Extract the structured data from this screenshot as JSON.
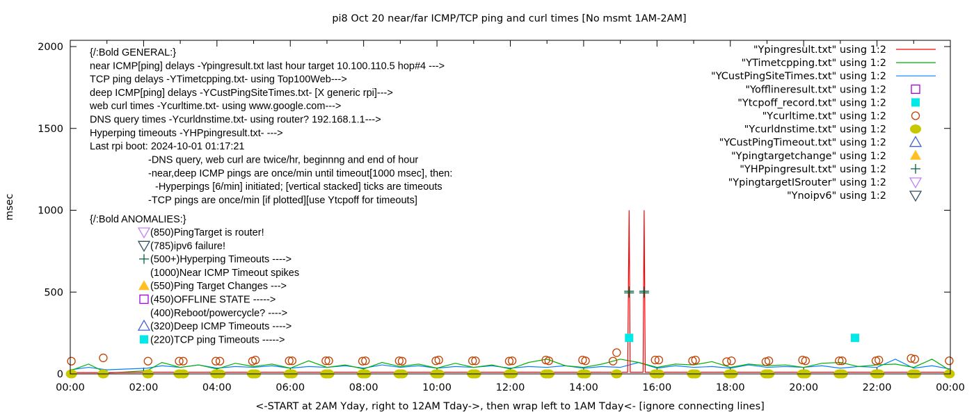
{
  "chart_data": {
    "type": "line",
    "title": "pi8 Oct 20  near/far ICMP/TCP ping and curl times [No msmt 1AM-2AM]",
    "xlabel": "<-START at 2AM Yday, right to 12AM Tday->, then wrap left to 1AM Tday<- [ignore connecting lines]",
    "ylabel": "msec",
    "xlim": [
      "00:00",
      "24:00"
    ],
    "ylim": [
      0,
      2050
    ],
    "x_ticks": [
      "00:00",
      "02:00",
      "04:00",
      "06:00",
      "08:00",
      "10:00",
      "12:00",
      "14:00",
      "16:00",
      "18:00",
      "20:00",
      "22:00",
      "00:00"
    ],
    "y_ticks": [
      "0",
      "500",
      "1000",
      "1500",
      "2000"
    ],
    "grid": false,
    "legend_placement": "top-right",
    "colors": {
      "ypingresult": "#ff0000",
      "ytimetcpping": "#00b000",
      "ycustpingsitetimes": "#0080ff",
      "yofflineresult": "#a000e0",
      "ytcpoff": "#00e8e8",
      "ycurltime": "#c04000",
      "ycurldnstime": "#c8c800",
      "ycustpingtimeout": "#4060d0",
      "ypingtargetchange": "#ffc020",
      "yhpping": "#006040",
      "ypingtargetisrouter": "#c080ff",
      "ynoipv6": "#305060"
    },
    "legend": [
      {
        "label": "\"Ypingresult.txt\" using 1:2",
        "style": "line",
        "color": "#ff0000"
      },
      {
        "label": "\"YTimetcpping.txt\" using 1:2",
        "style": "line",
        "color": "#00b000"
      },
      {
        "label": "\"YCustPingSiteTimes.txt\" using 1:2",
        "style": "line",
        "color": "#0080ff"
      },
      {
        "label": "\"Yofflineresult.txt\" using 1:2",
        "style": "open-square",
        "color": "#a000e0"
      },
      {
        "label": "\"Ytcpoff_record.txt\" using 1:2",
        "style": "filled-square",
        "color": "#00e8e8"
      },
      {
        "label": "\"Ycurltime.txt\" using 1:2",
        "style": "open-circle",
        "color": "#c04000"
      },
      {
        "label": "\"Ycurldnstime.txt\" using 1:2",
        "style": "filled-circle",
        "color": "#c8c800"
      },
      {
        "label": "\"YCustPingTimeout.txt\" using 1:2",
        "style": "open-triangle-up",
        "color": "#4060d0"
      },
      {
        "label": "\"Ypingtargetchange\" using 1:2",
        "style": "filled-triangle-up",
        "color": "#ffc020"
      },
      {
        "label": "\"YHPpingresult.txt\" using 1:2",
        "style": "plus",
        "color": "#006040"
      },
      {
        "label": "\"YpingtargetISrouter\" using 1:2",
        "style": "open-triangle-down",
        "color": "#c080ff"
      },
      {
        "label": "\"Ynoipv6\" using 1:2",
        "style": "open-triangle-down",
        "color": "#305060"
      }
    ],
    "annotations_general": [
      "{/:Bold GENERAL:}",
      "near ICMP[ping] delays -Ypingresult.txt last hour target 10.100.110.5 hop#4 --->",
      "TCP ping delays -YTimetcpping.txt- using Top100Web--->",
      "deep ICMP[ping] delays -YCustPingSiteTimes.txt- [X generic rpi]--->",
      "web curl times -Ycurltime.txt- using www.google.com--->",
      "DNS query times -Ycurldnstime.txt- using router? 192.168.1.1--->",
      "Hyperping timeouts -YHPpingresult.txt- --->",
      "Last rpi boot: 2024-10-01 01:17:21"
    ],
    "annotations_notes": [
      "-DNS query, web curl are twice/hr, beginnng and end of hour",
      "-near,deep ICMP pings are once/min until timeout[1000 msec], then:",
      "-Hyperpings [6/min] initiated; [vertical stacked] ticks are timeouts",
      "-TCP pings are once/min [if plotted][use Ytcpoff for timeouts]"
    ],
    "annotations_anomalies_title": "{/:Bold ANOMALIES:}",
    "annotations_anomalies": [
      {
        "text": "(850)PingTarget is router!",
        "symbol": "open-triangle-down",
        "color": "#c080ff"
      },
      {
        "text": "(785)ipv6 failure!",
        "symbol": "open-triangle-down",
        "color": "#305060"
      },
      {
        "text": "(500+)Hyperping Timeouts ---->",
        "symbol": "plus",
        "color": "#006040"
      },
      {
        "text": "(1000)Near ICMP Timeout spikes",
        "symbol": "none",
        "color": ""
      },
      {
        "text": "(550)Ping Target Changes --->",
        "symbol": "filled-triangle-up",
        "color": "#ffc020"
      },
      {
        "text": "(450)OFFLINE STATE ----->",
        "symbol": "open-square",
        "color": "#a000e0"
      },
      {
        "text": "(400)Reboot/powercycle? ---->",
        "symbol": "none",
        "color": ""
      },
      {
        "text": "(320)Deep ICMP Timeouts ---->",
        "symbol": "open-triangle-up",
        "color": "#4060d0"
      },
      {
        "text": "(220)TCP ping Timeouts ----->",
        "symbol": "filled-square",
        "color": "#00e8e8"
      }
    ],
    "series": {
      "ypingresult": [
        [
          0,
          8
        ],
        [
          1,
          8
        ],
        [
          2.1,
          10
        ],
        [
          4,
          10
        ],
        [
          6,
          10
        ],
        [
          8,
          10
        ],
        [
          10,
          10
        ],
        [
          12,
          10
        ],
        [
          14,
          10
        ],
        [
          15.2,
          10
        ],
        [
          15.24,
          1000
        ],
        [
          15.27,
          10
        ],
        [
          15.62,
          10
        ],
        [
          15.65,
          1000
        ],
        [
          15.68,
          10
        ],
        [
          18,
          10
        ],
        [
          20,
          10
        ],
        [
          22,
          10
        ],
        [
          24,
          10
        ]
      ],
      "ytimetcpping": [
        [
          0,
          20
        ],
        [
          0.5,
          60
        ],
        [
          1,
          5
        ],
        [
          2.1,
          20
        ],
        [
          2.5,
          70
        ],
        [
          3,
          40
        ],
        [
          3.5,
          55
        ],
        [
          4,
          30
        ],
        [
          4.5,
          65
        ],
        [
          5,
          45
        ],
        [
          5.5,
          60
        ],
        [
          6,
          35
        ],
        [
          6.5,
          80
        ],
        [
          7,
          40
        ],
        [
          7.5,
          55
        ],
        [
          8,
          30
        ],
        [
          8.5,
          70
        ],
        [
          9,
          45
        ],
        [
          9.5,
          60
        ],
        [
          10,
          35
        ],
        [
          10.5,
          65
        ],
        [
          11,
          40
        ],
        [
          11.5,
          55
        ],
        [
          12,
          30
        ],
        [
          12.5,
          70
        ],
        [
          13,
          90
        ],
        [
          13.5,
          50
        ],
        [
          14,
          40
        ],
        [
          14.5,
          60
        ],
        [
          15,
          90
        ],
        [
          15.5,
          70
        ],
        [
          16,
          40
        ],
        [
          16.5,
          60
        ],
        [
          17,
          55
        ],
        [
          17.5,
          75
        ],
        [
          18,
          40
        ],
        [
          18.5,
          60
        ],
        [
          19,
          50
        ],
        [
          19.5,
          55
        ],
        [
          20,
          40
        ],
        [
          20.5,
          65
        ],
        [
          21,
          70
        ],
        [
          21.5,
          45
        ],
        [
          22,
          55
        ],
        [
          22.5,
          60
        ],
        [
          23,
          40
        ],
        [
          23.5,
          90
        ],
        [
          24,
          20
        ]
      ],
      "ycustpingsitetimes": [
        [
          0,
          25
        ],
        [
          0.5,
          40
        ],
        [
          1,
          25
        ],
        [
          2.1,
          35
        ],
        [
          2.5,
          50
        ],
        [
          3,
          40
        ],
        [
          3.5,
          55
        ],
        [
          4,
          35
        ],
        [
          4.5,
          45
        ],
        [
          5,
          40
        ],
        [
          5.5,
          50
        ],
        [
          6,
          35
        ],
        [
          6.5,
          45
        ],
        [
          7,
          40
        ],
        [
          7.5,
          50
        ],
        [
          8,
          35
        ],
        [
          8.5,
          55
        ],
        [
          9,
          40
        ],
        [
          9.5,
          50
        ],
        [
          10,
          35
        ],
        [
          10.5,
          45
        ],
        [
          11,
          40
        ],
        [
          11.5,
          50
        ],
        [
          12,
          35
        ],
        [
          12.5,
          45
        ],
        [
          13,
          40
        ],
        [
          13.5,
          50
        ],
        [
          14,
          35
        ],
        [
          14.5,
          45
        ],
        [
          15,
          40
        ],
        [
          15.5,
          70
        ],
        [
          16,
          35
        ],
        [
          16.5,
          50
        ],
        [
          17,
          40
        ],
        [
          17.5,
          45
        ],
        [
          18,
          35
        ],
        [
          18.5,
          55
        ],
        [
          19,
          40
        ],
        [
          19.5,
          45
        ],
        [
          20,
          40
        ],
        [
          20.5,
          50
        ],
        [
          21,
          35
        ],
        [
          21.5,
          45
        ],
        [
          22,
          40
        ],
        [
          22.5,
          90
        ],
        [
          23,
          35
        ],
        [
          23.5,
          50
        ],
        [
          24,
          30
        ]
      ],
      "ytcpoff_record": [
        [
          15.24,
          220
        ],
        [
          21.4,
          220
        ]
      ],
      "yhppingresult": [
        [
          15.24,
          505
        ],
        [
          15.24,
          495
        ],
        [
          15.65,
          505
        ],
        [
          15.65,
          495
        ]
      ],
      "ycurltime": [
        [
          0.03,
          78
        ],
        [
          0.9,
          98
        ],
        [
          2.12,
          78
        ],
        [
          2.97,
          78
        ],
        [
          3.08,
          78
        ],
        [
          3.97,
          78
        ],
        [
          4.08,
          78
        ],
        [
          4.97,
          78
        ],
        [
          5.05,
          85
        ],
        [
          5.97,
          80
        ],
        [
          6.05,
          80
        ],
        [
          6.97,
          80
        ],
        [
          7.05,
          80
        ],
        [
          7.97,
          78
        ],
        [
          8.05,
          80
        ],
        [
          8.97,
          80
        ],
        [
          9.05,
          78
        ],
        [
          9.97,
          80
        ],
        [
          10.05,
          85
        ],
        [
          10.97,
          80
        ],
        [
          11.05,
          80
        ],
        [
          11.97,
          78
        ],
        [
          12.05,
          80
        ],
        [
          12.97,
          85
        ],
        [
          13.05,
          80
        ],
        [
          13.97,
          85
        ],
        [
          14.05,
          80
        ],
        [
          14.8,
          78
        ],
        [
          14.9,
          130
        ],
        [
          15.95,
          85
        ],
        [
          16.05,
          85
        ],
        [
          16.97,
          80
        ],
        [
          17.05,
          85
        ],
        [
          17.9,
          75
        ],
        [
          18.03,
          80
        ],
        [
          18.97,
          75
        ],
        [
          19.05,
          80
        ],
        [
          19.97,
          85
        ],
        [
          20.05,
          80
        ],
        [
          20.97,
          80
        ],
        [
          21.05,
          80
        ],
        [
          21.97,
          80
        ],
        [
          22.05,
          85
        ],
        [
          22.93,
          95
        ],
        [
          23.03,
          90
        ],
        [
          23.97,
          80
        ]
      ],
      "ycurldnstime": [
        [
          0.03,
          0
        ],
        [
          0.9,
          0
        ],
        [
          2.12,
          0
        ],
        [
          2.97,
          0
        ],
        [
          3.08,
          0
        ],
        [
          3.97,
          0
        ],
        [
          4.08,
          0
        ],
        [
          4.97,
          0
        ],
        [
          5.05,
          0
        ],
        [
          5.97,
          0
        ],
        [
          6.05,
          0
        ],
        [
          6.97,
          0
        ],
        [
          7.05,
          0
        ],
        [
          7.97,
          0
        ],
        [
          8.05,
          0
        ],
        [
          8.97,
          0
        ],
        [
          9.05,
          0
        ],
        [
          9.97,
          0
        ],
        [
          10.05,
          0
        ],
        [
          10.97,
          0
        ],
        [
          11.05,
          0
        ],
        [
          11.97,
          0
        ],
        [
          12.05,
          0
        ],
        [
          12.97,
          0
        ],
        [
          13.05,
          0
        ],
        [
          13.97,
          0
        ],
        [
          14.05,
          0
        ],
        [
          14.9,
          0
        ],
        [
          15.95,
          0
        ],
        [
          16.05,
          0
        ],
        [
          16.97,
          0
        ],
        [
          17.05,
          0
        ],
        [
          17.97,
          0
        ],
        [
          18.05,
          0
        ],
        [
          18.97,
          0
        ],
        [
          19.05,
          0
        ],
        [
          19.97,
          0
        ],
        [
          20.05,
          0
        ],
        [
          20.97,
          0
        ],
        [
          21.05,
          0
        ],
        [
          21.97,
          0
        ],
        [
          22.05,
          0
        ],
        [
          22.97,
          0
        ],
        [
          23.05,
          0
        ],
        [
          23.97,
          0
        ]
      ]
    }
  }
}
